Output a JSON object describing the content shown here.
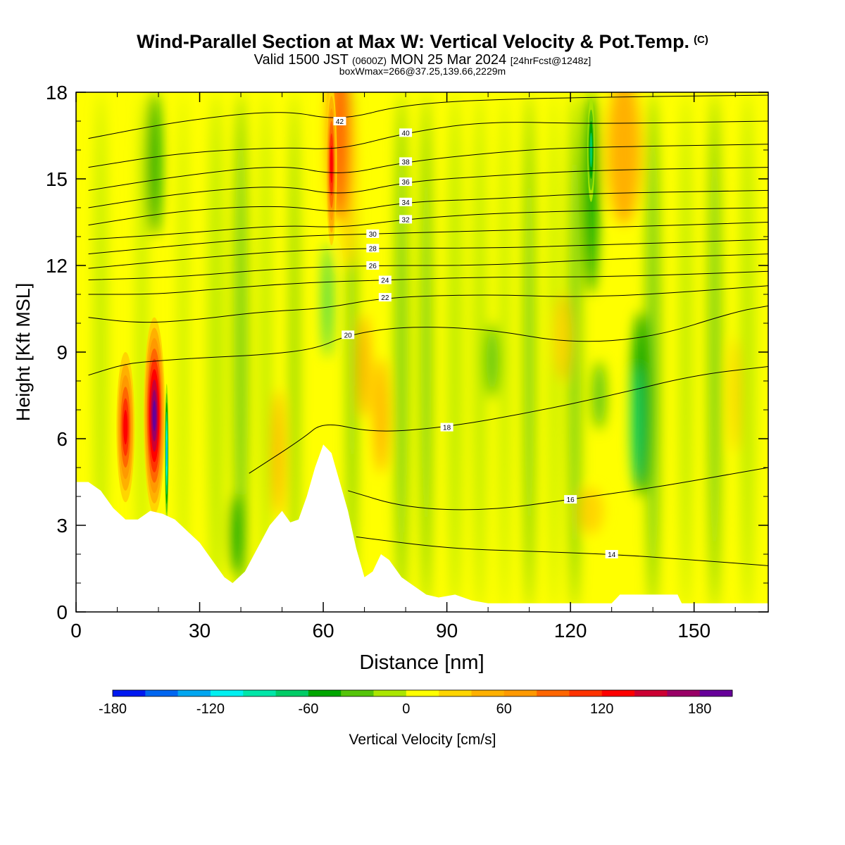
{
  "title": {
    "main": "Wind-Parallel Section at Max W: Vertical Velocity & Pot.Temp.",
    "copyright": "(C)",
    "valid_prefix": "Valid 1500 JST",
    "valid_utc": "(0600Z)",
    "valid_date": "MON 25 Mar 2024",
    "forecast": "[24hrFcst@1248z]",
    "box_info": "boxWmax=266@37.25,139.66,2229m"
  },
  "chart_data": {
    "type": "heatmap",
    "xlabel": "Distance [nm]",
    "ylabel": "Height [Kft MSL]",
    "xlim": [
      0,
      168
    ],
    "ylim": [
      0,
      18
    ],
    "x_ticks": [
      "0",
      "30",
      "60",
      "90",
      "120",
      "150"
    ],
    "y_ticks": [
      "0",
      "3",
      "6",
      "9",
      "12",
      "15",
      "18"
    ],
    "colorbar": {
      "label": "Vertical Velocity [cm/s]",
      "range": [
        -180,
        200
      ],
      "tick_labels": [
        "-180",
        "-120",
        "-60",
        "0",
        "60",
        "120",
        "180"
      ],
      "colors": [
        "#0019f0",
        "#0066f0",
        "#00a6f0",
        "#00f0f0",
        "#00e6a8",
        "#00cc66",
        "#00a600",
        "#55c40a",
        "#aae600",
        "#ffff00",
        "#ffd500",
        "#ffb000",
        "#ff9900",
        "#ff6600",
        "#ff3300",
        "#ff0000",
        "#cc0033",
        "#990066",
        "#660099"
      ]
    },
    "terrain_height_kft": [
      [
        0,
        4.5
      ],
      [
        3,
        4.5
      ],
      [
        6,
        4.2
      ],
      [
        9,
        3.6
      ],
      [
        12,
        3.2
      ],
      [
        15,
        3.2
      ],
      [
        18,
        3.5
      ],
      [
        21,
        3.4
      ],
      [
        24,
        3.2
      ],
      [
        27,
        2.8
      ],
      [
        30,
        2.4
      ],
      [
        33,
        1.8
      ],
      [
        36,
        1.2
      ],
      [
        38,
        1.0
      ],
      [
        41,
        1.4
      ],
      [
        44,
        2.2
      ],
      [
        47,
        3.0
      ],
      [
        50,
        3.5
      ],
      [
        52,
        3.1
      ],
      [
        54,
        3.2
      ],
      [
        56,
        4.0
      ],
      [
        58,
        5.0
      ],
      [
        60,
        5.8
      ],
      [
        62,
        5.5
      ],
      [
        64,
        4.5
      ],
      [
        66,
        3.5
      ],
      [
        68,
        2.2
      ],
      [
        70,
        1.2
      ],
      [
        72,
        1.4
      ],
      [
        74,
        2.0
      ],
      [
        76,
        1.8
      ],
      [
        79,
        1.2
      ],
      [
        82,
        0.9
      ],
      [
        85,
        0.6
      ],
      [
        88,
        0.5
      ],
      [
        92,
        0.6
      ],
      [
        96,
        0.4
      ],
      [
        100,
        0.3
      ],
      [
        110,
        0.3
      ],
      [
        120,
        0.3
      ],
      [
        130,
        0.3
      ],
      [
        132,
        0.6
      ],
      [
        140,
        0.6
      ],
      [
        146,
        0.6
      ],
      [
        147,
        0.3
      ],
      [
        168,
        0.3
      ]
    ],
    "theta_contours_kft": [
      {
        "label": "14",
        "points": [
          [
            68,
            2.6
          ],
          [
            90,
            2.2
          ],
          [
            110,
            2.1
          ],
          [
            130,
            2.0
          ],
          [
            150,
            1.8
          ],
          [
            168,
            1.6
          ]
        ]
      },
      {
        "label": "16",
        "points": [
          [
            66,
            4.2
          ],
          [
            80,
            3.6
          ],
          [
            100,
            3.5
          ],
          [
            120,
            3.9
          ],
          [
            140,
            4.3
          ],
          [
            160,
            4.8
          ],
          [
            168,
            5.0
          ]
        ]
      },
      {
        "label": "18",
        "points": [
          [
            42,
            4.8
          ],
          [
            55,
            6.0
          ],
          [
            60,
            6.6
          ],
          [
            72,
            6.2
          ],
          [
            90,
            6.4
          ],
          [
            110,
            6.9
          ],
          [
            130,
            7.5
          ],
          [
            150,
            8.2
          ],
          [
            168,
            8.5
          ]
        ]
      },
      {
        "label": "20",
        "points": [
          [
            3,
            8.2
          ],
          [
            12,
            8.6
          ],
          [
            20,
            8.7
          ],
          [
            30,
            8.8
          ],
          [
            45,
            8.9
          ],
          [
            58,
            9.1
          ],
          [
            66,
            9.6
          ],
          [
            80,
            9.9
          ],
          [
            100,
            9.8
          ],
          [
            120,
            9.3
          ],
          [
            140,
            9.5
          ],
          [
            160,
            10.4
          ],
          [
            168,
            10.6
          ]
        ]
      },
      {
        "label": "22",
        "points": [
          [
            3,
            10.2
          ],
          [
            15,
            10.0
          ],
          [
            28,
            10.1
          ],
          [
            45,
            10.4
          ],
          [
            60,
            10.5
          ],
          [
            75,
            10.9
          ],
          [
            100,
            11.0
          ],
          [
            120,
            10.9
          ],
          [
            140,
            11.0
          ],
          [
            168,
            11.3
          ]
        ]
      },
      {
        "label": "24",
        "points": [
          [
            3,
            11.0
          ],
          [
            20,
            11.0
          ],
          [
            35,
            11.2
          ],
          [
            55,
            11.4
          ],
          [
            75,
            11.5
          ],
          [
            100,
            11.6
          ],
          [
            125,
            11.6
          ],
          [
            150,
            11.7
          ],
          [
            168,
            11.8
          ]
        ]
      },
      {
        "label": "26",
        "points": [
          [
            3,
            11.5
          ],
          [
            25,
            11.6
          ],
          [
            50,
            11.9
          ],
          [
            72,
            12.0
          ],
          [
            100,
            12.0
          ],
          [
            125,
            12.2
          ],
          [
            168,
            12.4
          ]
        ]
      },
      {
        "label": "28",
        "points": [
          [
            3,
            11.9
          ],
          [
            25,
            12.2
          ],
          [
            50,
            12.5
          ],
          [
            72,
            12.6
          ],
          [
            100,
            12.6
          ],
          [
            125,
            12.7
          ],
          [
            168,
            12.9
          ]
        ]
      },
      {
        "label": "30",
        "points": [
          [
            3,
            12.4
          ],
          [
            25,
            12.7
          ],
          [
            50,
            13.0
          ],
          [
            72,
            13.1
          ],
          [
            100,
            13.2
          ],
          [
            125,
            13.3
          ],
          [
            168,
            13.5
          ]
        ]
      },
      {
        "label": "32",
        "points": [
          [
            3,
            12.9
          ],
          [
            25,
            13.1
          ],
          [
            50,
            13.4
          ],
          [
            64,
            13.3
          ],
          [
            80,
            13.6
          ],
          [
            100,
            13.8
          ],
          [
            125,
            13.9
          ],
          [
            168,
            14.0
          ]
        ]
      },
      {
        "label": "34",
        "points": [
          [
            3,
            13.4
          ],
          [
            25,
            13.9
          ],
          [
            50,
            14.1
          ],
          [
            64,
            13.8
          ],
          [
            80,
            14.2
          ],
          [
            100,
            14.3
          ],
          [
            125,
            14.5
          ],
          [
            168,
            14.6
          ]
        ]
      },
      {
        "label": "36",
        "points": [
          [
            3,
            14.0
          ],
          [
            25,
            14.5
          ],
          [
            50,
            14.8
          ],
          [
            64,
            14.4
          ],
          [
            80,
            14.9
          ],
          [
            100,
            15.1
          ],
          [
            125,
            15.3
          ],
          [
            168,
            15.4
          ]
        ]
      },
      {
        "label": "38",
        "points": [
          [
            3,
            14.6
          ],
          [
            25,
            15.1
          ],
          [
            50,
            15.5
          ],
          [
            64,
            15.1
          ],
          [
            80,
            15.6
          ],
          [
            108,
            16.0
          ],
          [
            125,
            16.1
          ],
          [
            168,
            16.2
          ]
        ]
      },
      {
        "label": "40",
        "points": [
          [
            3,
            15.4
          ],
          [
            25,
            15.9
          ],
          [
            50,
            16.1
          ],
          [
            64,
            16.0
          ],
          [
            80,
            16.6
          ],
          [
            100,
            17.0
          ],
          [
            125,
            16.9
          ],
          [
            168,
            17.0
          ]
        ]
      },
      {
        "label": "42",
        "points": [
          [
            3,
            16.4
          ],
          [
            25,
            17.0
          ],
          [
            50,
            17.4
          ],
          [
            64,
            17.0
          ],
          [
            80,
            17.6
          ],
          [
            110,
            17.8
          ],
          [
            168,
            17.9
          ]
        ]
      }
    ],
    "w_features_cms": [
      {
        "x": 19,
        "y": 6.8,
        "value": 190
      },
      {
        "x": 12,
        "y": 6.4,
        "value": 120
      },
      {
        "x": 22,
        "y": 5.5,
        "value": -140
      },
      {
        "x": 62,
        "y": 15.5,
        "value": 120
      },
      {
        "x": 61,
        "y": 10.5,
        "value": -80
      },
      {
        "x": 125,
        "y": 16.0,
        "value": -80
      },
      {
        "x": 137,
        "y": 7.0,
        "value": -60
      },
      {
        "x": 134,
        "y": 16.0,
        "value": 60
      },
      {
        "x": 74,
        "y": 6.8,
        "value": 40
      },
      {
        "x": 71,
        "y": 8.5,
        "value": 40
      }
    ],
    "grid": false,
    "legend": "bottom"
  }
}
